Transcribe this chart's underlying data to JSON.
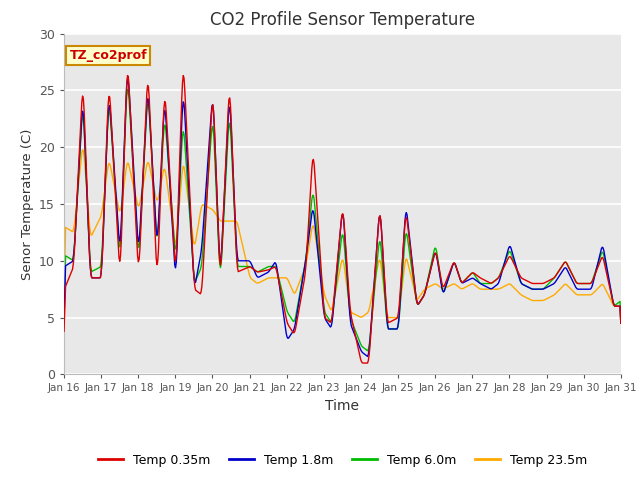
{
  "title": "CO2 Profile Sensor Temperature",
  "xlabel": "Time",
  "ylabel": "Senor Temperature (C)",
  "ylim": [
    0,
    30
  ],
  "annotation": "TZ_co2prof",
  "annotation_color": "#cc0000",
  "annotation_bg": "#ffffcc",
  "annotation_border": "#cc8800",
  "fig_bg": "#ffffff",
  "plot_bg": "#e8e8e8",
  "legend_labels": [
    "Temp 0.35m",
    "Temp 1.8m",
    "Temp 6.0m",
    "Temp 23.5m"
  ],
  "line_colors": [
    "#dd0000",
    "#0000cc",
    "#00bb00",
    "#ffaa00"
  ],
  "x_tick_labels": [
    "Jan 16",
    "Jan 17",
    "Jan 18",
    "Jan 19",
    "Jan 20",
    "Jan 21",
    "Jan 22",
    "Jan 23",
    "Jan 24",
    "Jan 25",
    "Jan 26",
    "Jan 27",
    "Jan 28",
    "Jan 29",
    "Jan 30",
    "Jan 31"
  ],
  "yticks": [
    0,
    5,
    10,
    15,
    20,
    25,
    30
  ]
}
